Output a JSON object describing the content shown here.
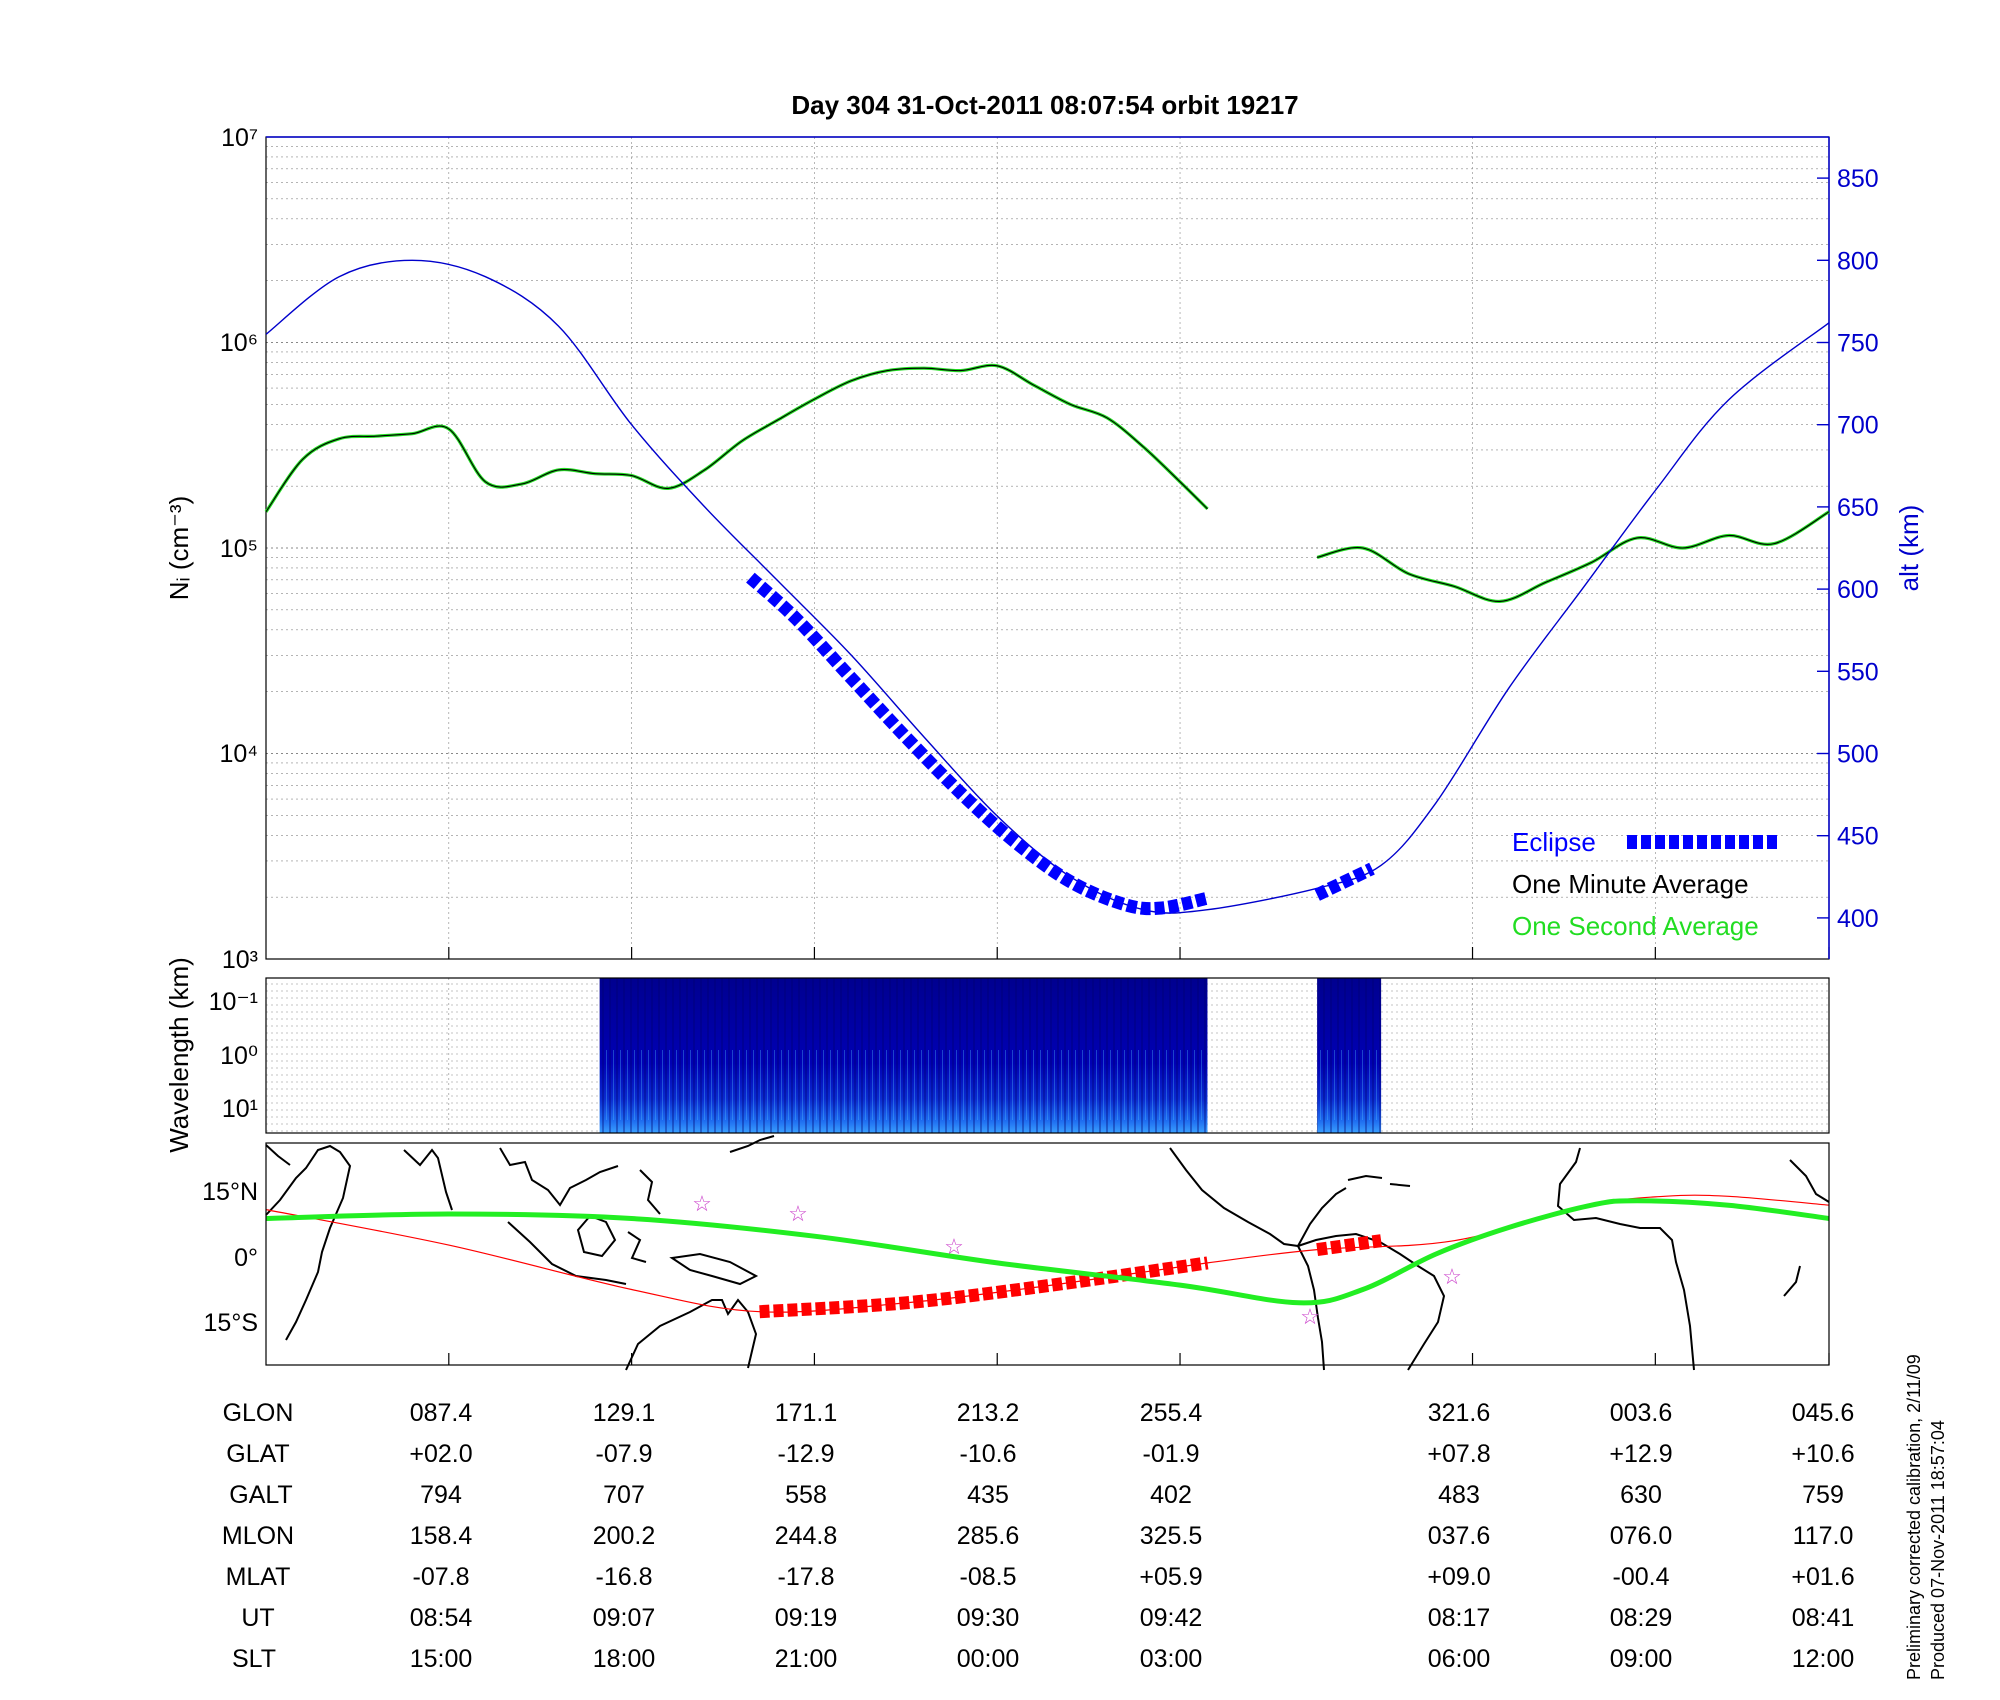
{
  "title": "Day 304  31-Oct-2011 08:07:54   orbit 19217",
  "colors": {
    "altitude": "#0000cc",
    "eclipse": "#0000ff",
    "one_minute": "#000000",
    "one_second": "#22dd22",
    "spectrogram_bg": "#00008f",
    "orbit_track": "#ff0000",
    "footprint": "#22ee22",
    "stars": "#cc44cc"
  },
  "chart_data": [
    {
      "type": "line",
      "name": "density",
      "ylabel": "Nᵢ (cm⁻³)",
      "y_scale": "log",
      "ylim": [
        1000,
        10000000
      ],
      "y_ticks": [
        "10³",
        "10⁴",
        "10⁵",
        "10⁶",
        "10⁷"
      ],
      "y2label": "alt (km)",
      "y2lim": [
        375,
        875
      ],
      "y2_ticks": [
        "400",
        "450",
        "500",
        "550",
        "600",
        "650",
        "700",
        "750",
        "800",
        "850"
      ],
      "grid": true,
      "legend": {
        "placement": "bottom-right",
        "items": [
          "Eclipse",
          "One Minute Average",
          "One Second Average"
        ]
      },
      "x_range": [
        0,
        17.1
      ],
      "series": [
        {
          "name": "One Minute Average",
          "x": [
            0,
            0.4,
            0.8,
            1.2,
            1.6,
            2.0,
            2.4,
            2.8,
            3.2,
            3.6,
            4.0,
            4.4,
            4.8,
            5.2,
            5.6,
            6.0,
            6.4,
            6.8,
            7.2,
            7.6,
            8.0,
            8.4,
            8.8,
            9.2,
            9.6,
            10.0,
            10.3
          ],
          "y": [
            150000,
            270000,
            340000,
            350000,
            360000,
            380000,
            210000,
            205000,
            240000,
            230000,
            225000,
            195000,
            240000,
            330000,
            420000,
            530000,
            650000,
            730000,
            750000,
            730000,
            770000,
            620000,
            500000,
            430000,
            310000,
            210000,
            155000
          ]
        },
        {
          "name": "One Minute Average",
          "x": [
            11.5,
            12.0,
            12.5,
            13.0,
            13.5,
            14.0,
            14.5,
            15.0,
            15.5,
            16.0,
            16.5,
            17.1
          ],
          "y": [
            90000,
            100000,
            75000,
            65000,
            55000,
            68000,
            85000,
            112000,
            100000,
            115000,
            105000,
            150000
          ]
        },
        {
          "name": "altitude",
          "axis": "alt",
          "x": [
            0,
            0.8,
            1.6,
            2.4,
            3.2,
            4.0,
            4.8,
            5.6,
            6.4,
            7.2,
            8.0,
            8.8,
            9.6,
            10.3,
            11.5,
            12.2,
            12.8,
            13.6,
            14.4,
            15.2,
            16.0,
            17.1
          ],
          "y": [
            755,
            790,
            800,
            790,
            760,
            700,
            650,
            605,
            560,
            510,
            462,
            425,
            405,
            405,
            418,
            432,
            470,
            540,
            600,
            660,
            715,
            762
          ]
        },
        {
          "name": "Eclipse",
          "axis": "alt",
          "x": [
            5.3,
            5.8,
            6.4,
            7.0,
            7.6,
            8.2,
            8.8,
            9.4,
            9.8,
            10.3,
            11.5,
            12.1
          ],
          "y": [
            607,
            582,
            546,
            510,
            476,
            446,
            422,
            408,
            406,
            412,
            414,
            430
          ]
        }
      ]
    },
    {
      "type": "heatmap",
      "name": "spectrogram",
      "ylabel": "Wavelength (km)",
      "y_scale": "log",
      "y_ticks": [
        "10⁻¹",
        "10⁰",
        "10¹"
      ],
      "blocks_x": [
        [
          3.65,
          10.3
        ],
        [
          11.5,
          12.2
        ]
      ]
    },
    {
      "type": "line",
      "name": "map",
      "y_ticks": [
        "15°N",
        "0°",
        "15°S"
      ],
      "ylim": [
        -25,
        25
      ],
      "series": [
        {
          "name": "orbit track",
          "x": [
            0,
            2.0,
            4.0,
            5.4,
            7.0,
            8.6,
            10.3,
            11.5,
            13.0,
            14.5,
            15.3,
            16.0,
            17.1
          ],
          "y": [
            10,
            2,
            -8,
            -13,
            -11,
            -7,
            -2,
            1,
            3,
            11,
            13,
            13,
            11
          ]
        },
        {
          "name": "ground footprint",
          "x": [
            0,
            2.0,
            4.0,
            6.0,
            8.0,
            10.0,
            11.3,
            12.0,
            12.8,
            13.6,
            14.5,
            15.0,
            16.0,
            17.1
          ],
          "y": [
            8,
            9,
            8,
            4,
            -2,
            -7,
            -11,
            -8,
            0,
            6,
            11,
            12,
            11,
            8
          ]
        }
      ]
    }
  ],
  "table": {
    "row_labels": [
      "GLON",
      "GLAT",
      "GALT",
      "MLON",
      "MLAT",
      "UT",
      "SLT"
    ],
    "columns": [
      [
        "087.4",
        "+02.0",
        "794",
        "158.4",
        "-07.8",
        "08:54",
        "15:00"
      ],
      [
        "129.1",
        "-07.9",
        "707",
        "200.2",
        "-16.8",
        "09:07",
        "18:00"
      ],
      [
        "171.1",
        "-12.9",
        "558",
        "244.8",
        "-17.8",
        "09:19",
        "21:00"
      ],
      [
        "213.2",
        "-10.6",
        "435",
        "285.6",
        "-08.5",
        "09:30",
        "00:00"
      ],
      [
        "255.4",
        "-01.9",
        "402",
        "325.5",
        "+05.9",
        "09:42",
        "03:00"
      ],
      [
        "321.6",
        "+07.8",
        "483",
        "037.6",
        "+09.0",
        "08:17",
        "06:00"
      ],
      [
        "003.6",
        "+12.9",
        "630",
        "076.0",
        "-00.4",
        "08:29",
        "09:00"
      ],
      [
        "045.6",
        "+10.6",
        "759",
        "117.0",
        "+01.6",
        "08:41",
        "12:00"
      ]
    ]
  },
  "footnote": [
    "Preliminary corrected calibration, 2/11/09",
    "Produced 07-Nov-2011 18:57:04"
  ]
}
